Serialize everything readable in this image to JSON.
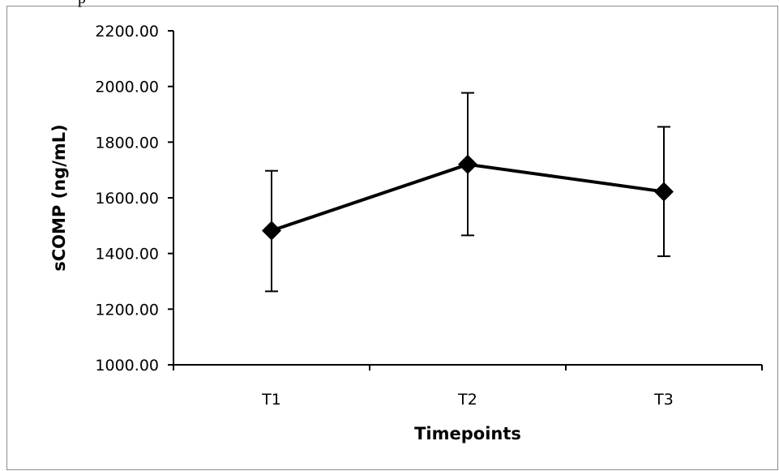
{
  "stray_text": "p",
  "chart_data": {
    "type": "line",
    "categories": [
      "T1",
      "T2",
      "T3"
    ],
    "series": [
      {
        "values": [
          1482,
          1720,
          1622
        ],
        "error_upper": [
          1697,
          1977,
          1855
        ],
        "error_lower": [
          1264,
          1465,
          1390
        ]
      }
    ],
    "ylim": [
      1000,
      2200
    ],
    "yticks": [
      "1000.00",
      "1200.00",
      "1400.00",
      "1600.00",
      "1800.00",
      "2000.00",
      "2200.00"
    ],
    "xlabel": "Timepoints",
    "ylabel": "sCOMP (ng/mL)",
    "grid": false,
    "marker": "diamond",
    "line_color": "#000000"
  }
}
